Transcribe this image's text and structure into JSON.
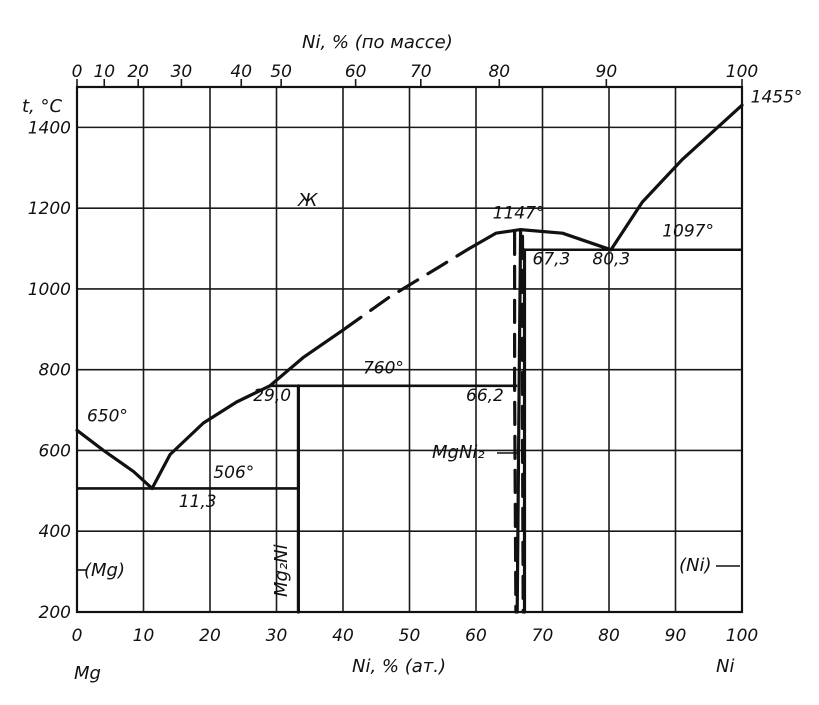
{
  "chart_data": {
    "type": "line",
    "title": "",
    "xlabel": "Ni, % (ат.)",
    "x2label": "Ni, % (по массе)",
    "ylabel": "t, °C",
    "xlim": [
      0,
      100
    ],
    "ylim": [
      200,
      1500
    ],
    "x_ticks": [
      "0",
      "10",
      "20",
      "30",
      "40",
      "50",
      "60",
      "70",
      "80",
      "90",
      "100"
    ],
    "x_tick_values": [
      0,
      10,
      20,
      30,
      40,
      50,
      60,
      70,
      80,
      90,
      100
    ],
    "x2_ticks": [
      "0",
      "10",
      "20",
      "30",
      "40",
      "50",
      "60",
      "70",
      "80",
      "90",
      "100"
    ],
    "x2_tick_values_at": [
      0,
      4.1,
      9.2,
      15.7,
      24.7,
      30.7,
      41.9,
      51.7,
      63.5,
      79.6,
      100
    ],
    "y_ticks": [
      "200",
      "400",
      "600",
      "800",
      "1000",
      "1200",
      "1400"
    ],
    "y_tick_values": [
      200,
      400,
      600,
      800,
      1000,
      1200,
      1400
    ],
    "x_end_labels": {
      "left": "Mg",
      "right": "Ni"
    },
    "grid": true,
    "series": [
      {
        "style": "solid",
        "points": [
          [
            0,
            650
          ],
          [
            4,
            600
          ],
          [
            8.5,
            548
          ],
          [
            11.3,
            506
          ]
        ]
      },
      {
        "style": "solid",
        "points": [
          [
            11.3,
            506
          ],
          [
            14,
            590
          ],
          [
            19,
            668
          ],
          [
            24,
            720
          ],
          [
            29,
            760
          ]
        ]
      },
      {
        "style": "solid",
        "points": [
          [
            29,
            760
          ],
          [
            34,
            830
          ],
          [
            40,
            898
          ]
        ]
      },
      {
        "style": "dashed",
        "points": [
          [
            40,
            898
          ],
          [
            47,
            980
          ],
          [
            55,
            1060
          ],
          [
            59,
            1100
          ]
        ]
      },
      {
        "style": "solid",
        "points": [
          [
            59,
            1100
          ],
          [
            63,
            1138
          ],
          [
            66.7,
            1147
          ],
          [
            73,
            1138
          ],
          [
            80.3,
            1097
          ]
        ]
      },
      {
        "style": "solid",
        "points": [
          [
            80.3,
            1097
          ],
          [
            85,
            1215
          ],
          [
            91,
            1320
          ],
          [
            100,
            1455
          ]
        ]
      }
    ],
    "isotherms": [
      {
        "y": 506,
        "x": [
          0,
          33.3
        ]
      },
      {
        "y": 760,
        "x": [
          29,
          66.2
        ]
      },
      {
        "y": 1097,
        "x": [
          67.3,
          100
        ]
      }
    ],
    "phase_lines": [
      {
        "style": "solid",
        "points": [
          [
            33.3,
            200
          ],
          [
            33.3,
            760
          ]
        ]
      },
      {
        "style": "solid",
        "points": [
          [
            66.7,
            1147
          ],
          [
            66.5,
            780
          ],
          [
            66.2,
            200
          ]
        ]
      },
      {
        "style": "dashed",
        "points": [
          [
            65.8,
            1140
          ],
          [
            65.8,
            760
          ],
          [
            66.0,
            200
          ]
        ]
      },
      {
        "style": "solid",
        "points": [
          [
            67.3,
            1097
          ],
          [
            67.3,
            200
          ]
        ]
      },
      {
        "style": "dashed",
        "points": [
          [
            67.0,
            1130
          ],
          [
            67.0,
            650
          ],
          [
            67.1,
            200
          ]
        ]
      }
    ],
    "annotations": [
      {
        "text": "650°",
        "x": 1.5,
        "y": 672
      },
      {
        "text": "11,3",
        "x": 15.3,
        "y": 460
      },
      {
        "text": "506°",
        "x": 20.5,
        "y": 532
      },
      {
        "text": "29,0",
        "x": 26.5,
        "y": 722
      },
      {
        "text": "760°",
        "x": 43,
        "y": 790
      },
      {
        "text": "66,2",
        "x": 58.5,
        "y": 722
      },
      {
        "text": "1147°",
        "x": 62.5,
        "y": 1174
      },
      {
        "text": "67,3",
        "x": 68.5,
        "y": 1060
      },
      {
        "text": "80,3",
        "x": 77.5,
        "y": 1060
      },
      {
        "text": "1097°",
        "x": 88,
        "y": 1130
      },
      {
        "text": "1455°",
        "x": 101.3,
        "y": 1462
      }
    ],
    "phase_labels": {
      "liquid": "Ж",
      "mg": "(Mg)",
      "ni": "(Ni)",
      "mg2ni": "Mg₂Ni",
      "mgni2": "MgNi₂"
    }
  }
}
